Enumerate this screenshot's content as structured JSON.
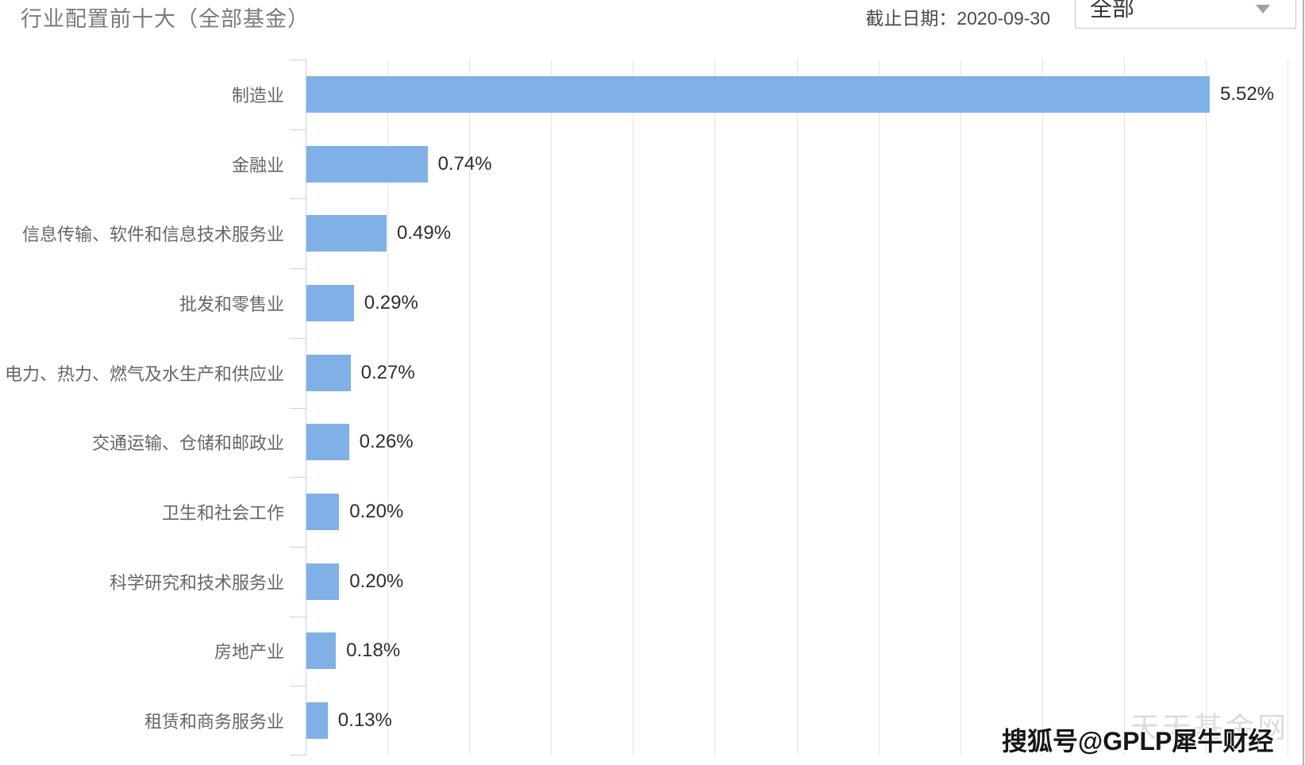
{
  "header": {
    "title": "行业配置前十大（全部基金）",
    "date_label": "截止日期：2020-09-30",
    "dropdown": {
      "selected": "全部"
    }
  },
  "chart_data": {
    "type": "bar",
    "orientation": "horizontal",
    "title": "行业配置前十大（全部基金）",
    "categories": [
      "制造业",
      "金融业",
      "信息传输、软件和信息技术服务业",
      "批发和零售业",
      "电力、热力、燃气及水生产和供应业",
      "交通运输、仓储和邮政业",
      "卫生和社会工作",
      "科学研究和技术服务业",
      "房地产业",
      "租赁和商务服务业"
    ],
    "values": [
      5.52,
      0.74,
      0.49,
      0.29,
      0.27,
      0.26,
      0.2,
      0.2,
      0.18,
      0.13
    ],
    "display_values": [
      "5.52%",
      "0.74%",
      "0.49%",
      "0.29%",
      "0.27%",
      "0.26%",
      "0.20%",
      "0.20%",
      "0.18%",
      "0.13%"
    ],
    "unit": "%",
    "xlim": [
      0,
      6
    ],
    "grid_interval": 0.5,
    "grid": true,
    "legend": false,
    "bar_color": "#7fb1e6"
  },
  "watermarks": {
    "site": "天天基金网",
    "source": "搜狐号@GPLP犀牛财经"
  }
}
